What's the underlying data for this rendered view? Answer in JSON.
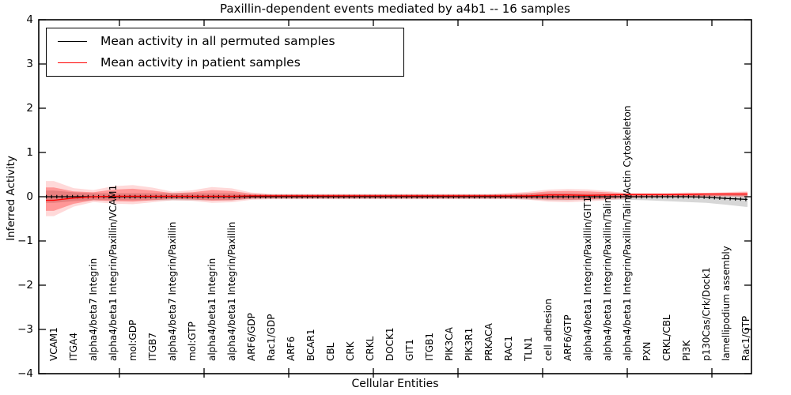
{
  "title": "Paxillin-dependent events mediated by a4b1 -- 16 samples",
  "legend": [
    {
      "label": "Mean activity in all permuted samples",
      "color": "#000000"
    },
    {
      "label": "Mean activity in patient samples",
      "color": "#ff0000"
    }
  ],
  "colors": {
    "permuted_line": "#000000",
    "patient_line": "#ff0000",
    "patient_band": "#ff0000",
    "permuted_band": "#b0b0b0",
    "frame": "#000000",
    "background": "#ffffff"
  },
  "chart_data": {
    "type": "line",
    "title": "Paxillin-dependent events mediated by a4b1 -- 16 samples",
    "xlabel": "Cellular Entities",
    "ylabel": "Inferred Activity",
    "ylim": [
      -4,
      4
    ],
    "yticks": [
      4,
      3,
      2,
      1,
      0,
      -1,
      -2,
      -3,
      -4
    ],
    "ytick_labels": [
      "4",
      "3",
      "2",
      "1",
      "0",
      "−1",
      "−2",
      "−3",
      "−4"
    ],
    "grid": false,
    "legend_position": "upper left",
    "categories": [
      "VCAM1",
      "ITGA4",
      "alpha4/beta7 Integrin",
      "alpha4/beta1 Integrin/Paxillin/VCAM1",
      "mol:GDP",
      "ITGB7",
      "alpha4/beta7 Integrin/Paxillin",
      "mol:GTP",
      "alpha4/beta1 Integrin",
      "alpha4/beta1 Integrin/Paxillin",
      "ARF6/GDP",
      "Rac1/GDP",
      "ARF6",
      "BCAR1",
      "CBL",
      "CRK",
      "CRKL",
      "DOCK1",
      "GIT1",
      "ITGB1",
      "PIK3CA",
      "PIK3R1",
      "PRKACA",
      "RAC1",
      "TLN1",
      "cell adhesion",
      "ARF6/GTP",
      "alpha4/beta1 Integrin/Paxillin/GIT1",
      "alpha4/beta1 Integrin/Paxillin/Talin",
      "alpha4/beta1 Integrin/Paxillin/Talin/Actin Cytoskeleton",
      "PXN",
      "CRKL/CBL",
      "PI3K",
      "p130Cas/Crk/Dock1",
      "lamellipodium assembly",
      "Rac1/GTP"
    ],
    "series": [
      {
        "name": "Mean activity in all permuted samples",
        "color": "#000000",
        "values": [
          0,
          0,
          0,
          0,
          0,
          0,
          0,
          0,
          0,
          0,
          0,
          0,
          0,
          0,
          0,
          0,
          0,
          0,
          0,
          0,
          0,
          0,
          0,
          0,
          0,
          0,
          0,
          0,
          0,
          0,
          0,
          0,
          0,
          -0.01,
          -0.04,
          -0.06
        ]
      },
      {
        "name": "Mean activity in patient samples",
        "color": "#ff0000",
        "values": [
          -0.08,
          -0.03,
          0,
          0.01,
          0.01,
          0.01,
          0.01,
          0.01,
          0.01,
          0.01,
          0.02,
          0.02,
          0.02,
          0.02,
          0.02,
          0.02,
          0.02,
          0.02,
          0.02,
          0.02,
          0.02,
          0.02,
          0.02,
          0.02,
          0.02,
          0.04,
          0.04,
          0.03,
          0.04,
          0.05,
          0.05,
          0.05,
          0.05,
          0.06,
          0.06,
          0.06
        ]
      }
    ],
    "bands": [
      {
        "name": "permuted-range",
        "color": "#b0b0b0",
        "opacity": 0.5,
        "upper": [
          0.14,
          0.1,
          0.08,
          0.08,
          0.08,
          0.08,
          0.08,
          0.08,
          0.08,
          0.08,
          0.05,
          0.05,
          0.05,
          0.05,
          0.05,
          0.05,
          0.05,
          0.05,
          0.05,
          0.05,
          0.05,
          0.05,
          0.05,
          0.05,
          0.06,
          0.08,
          0.08,
          0.07,
          0.06,
          0.06,
          0.05,
          0.05,
          0.05,
          0.04,
          0.04,
          0.05
        ],
        "lower": [
          -0.14,
          -0.1,
          -0.08,
          -0.08,
          -0.08,
          -0.08,
          -0.08,
          -0.08,
          -0.08,
          -0.08,
          -0.05,
          -0.05,
          -0.05,
          -0.05,
          -0.05,
          -0.05,
          -0.05,
          -0.05,
          -0.05,
          -0.05,
          -0.05,
          -0.05,
          -0.05,
          -0.05,
          -0.06,
          -0.08,
          -0.08,
          -0.07,
          -0.06,
          -0.07,
          -0.08,
          -0.1,
          -0.12,
          -0.14,
          -0.18,
          -0.23
        ]
      },
      {
        "name": "patient-range",
        "color": "#ff0000",
        "opacity": 0.3,
        "outer_scale": 1.5,
        "outer_opacity": 0.15,
        "upper": [
          0.21,
          0.12,
          0.1,
          0.16,
          0.18,
          0.14,
          0.08,
          0.1,
          0.15,
          0.13,
          0.07,
          0.05,
          0.05,
          0.05,
          0.05,
          0.05,
          0.05,
          0.05,
          0.05,
          0.05,
          0.05,
          0.05,
          0.05,
          0.06,
          0.08,
          0.12,
          0.13,
          0.12,
          0.1,
          0.07,
          0.07,
          0.07,
          0.08,
          0.08,
          0.09,
          0.1
        ],
        "lower": [
          -0.32,
          -0.16,
          -0.08,
          -0.1,
          -0.11,
          -0.08,
          -0.05,
          -0.06,
          -0.09,
          -0.08,
          -0.04,
          -0.03,
          -0.03,
          -0.03,
          -0.03,
          -0.03,
          -0.03,
          -0.03,
          -0.03,
          -0.03,
          -0.03,
          -0.03,
          -0.03,
          -0.03,
          -0.04,
          -0.06,
          -0.07,
          -0.06,
          -0.04,
          -0.01,
          0.0,
          0.01,
          0.01,
          0.01,
          0.02,
          0.01
        ]
      }
    ]
  }
}
